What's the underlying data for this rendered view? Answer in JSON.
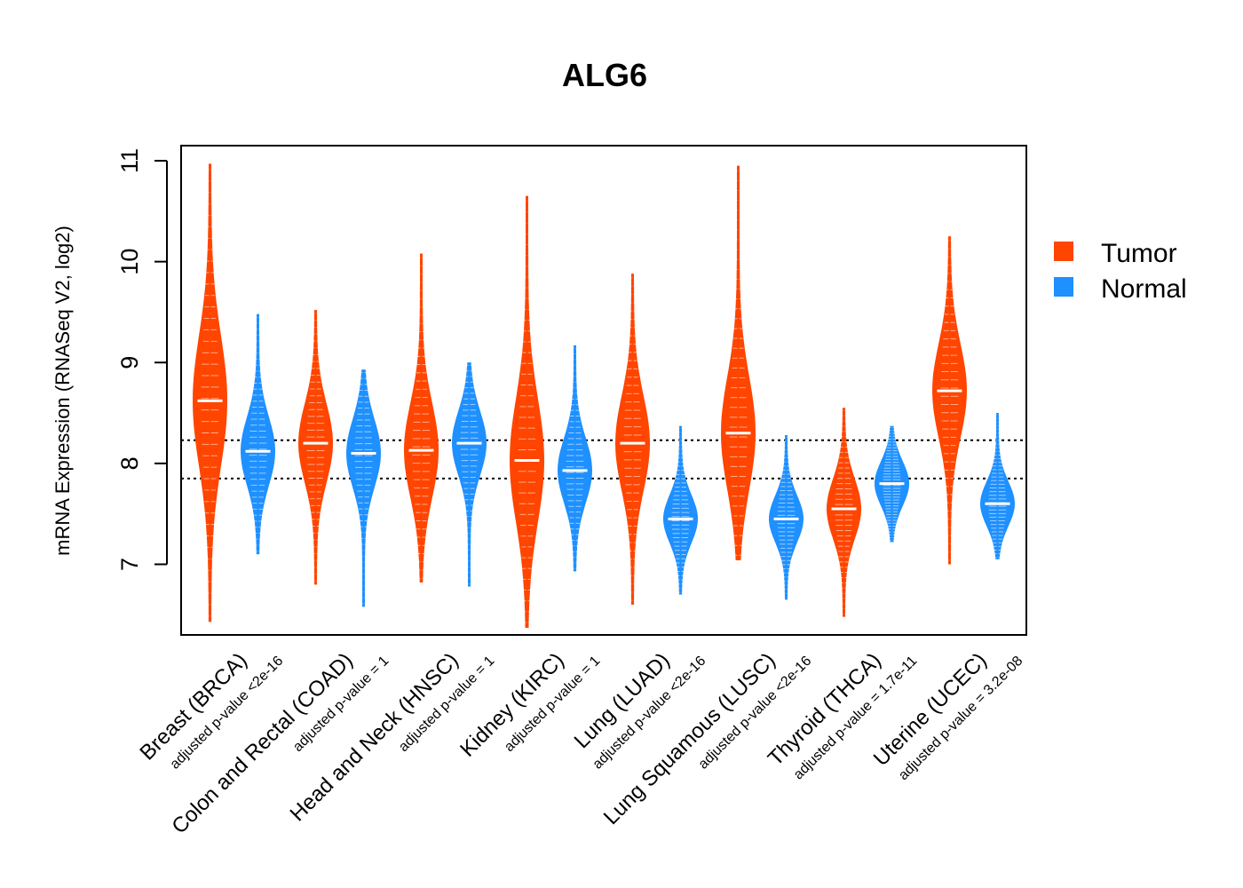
{
  "chart_data": {
    "type": "violin",
    "title": "ALG6",
    "ylabel": "mRNA Expression (RNASeq V2, log2)",
    "xlabel": "",
    "ylim": [
      6.3,
      11.15
    ],
    "yticks": [
      7,
      8,
      9,
      10,
      11
    ],
    "reference_lines": [
      7.85,
      8.23
    ],
    "legend": {
      "position": "right",
      "entries": [
        {
          "name": "Tumor",
          "color": "#FF4500"
        },
        {
          "name": "Normal",
          "color": "#1E90FF"
        }
      ]
    },
    "categories": [
      {
        "name": "Breast (BRCA)",
        "pvalue": "adjusted p-value <2e-16",
        "tumor": {
          "min": 6.43,
          "max": 10.97,
          "median": 8.62
        },
        "normal": {
          "min": 7.1,
          "max": 9.48,
          "median": 8.12
        }
      },
      {
        "name": "Colon and Rectal (COAD)",
        "pvalue": "adjusted p-value = 1",
        "tumor": {
          "min": 6.8,
          "max": 9.52,
          "median": 8.2
        },
        "normal": {
          "min": 6.58,
          "max": 8.93,
          "median": 8.1
        }
      },
      {
        "name": "Head and Neck (HNSC)",
        "pvalue": "adjusted p-value = 1",
        "tumor": {
          "min": 6.82,
          "max": 10.08,
          "median": 8.13
        },
        "normal": {
          "min": 6.78,
          "max": 9.0,
          "median": 8.2
        }
      },
      {
        "name": "Kidney (KIRC)",
        "pvalue": "adjusted p-value = 1",
        "tumor": {
          "min": 6.37,
          "max": 10.65,
          "median": 8.03
        },
        "normal": {
          "min": 6.93,
          "max": 9.17,
          "median": 7.93
        }
      },
      {
        "name": "Lung (LUAD)",
        "pvalue": "adjusted p-value <2e-16",
        "tumor": {
          "min": 6.6,
          "max": 9.88,
          "median": 8.2
        },
        "normal": {
          "min": 6.7,
          "max": 8.37,
          "median": 7.45
        }
      },
      {
        "name": "Lung Squamous (LUSC)",
        "pvalue": "adjusted p-value <2e-16",
        "tumor": {
          "min": 7.04,
          "max": 10.95,
          "median": 8.3
        },
        "normal": {
          "min": 6.65,
          "max": 8.28,
          "median": 7.45
        }
      },
      {
        "name": "Thyroid (THCA)",
        "pvalue": "adjusted p-value = 1.7e-11",
        "tumor": {
          "min": 6.48,
          "max": 8.55,
          "median": 7.55
        },
        "normal": {
          "min": 7.22,
          "max": 8.37,
          "median": 7.8
        }
      },
      {
        "name": "Uterine (UCEC)",
        "pvalue": "adjusted p-value = 3.2e-08",
        "tumor": {
          "min": 7.0,
          "max": 10.25,
          "median": 8.72
        },
        "normal": {
          "min": 7.05,
          "max": 8.5,
          "median": 7.6
        }
      }
    ]
  }
}
